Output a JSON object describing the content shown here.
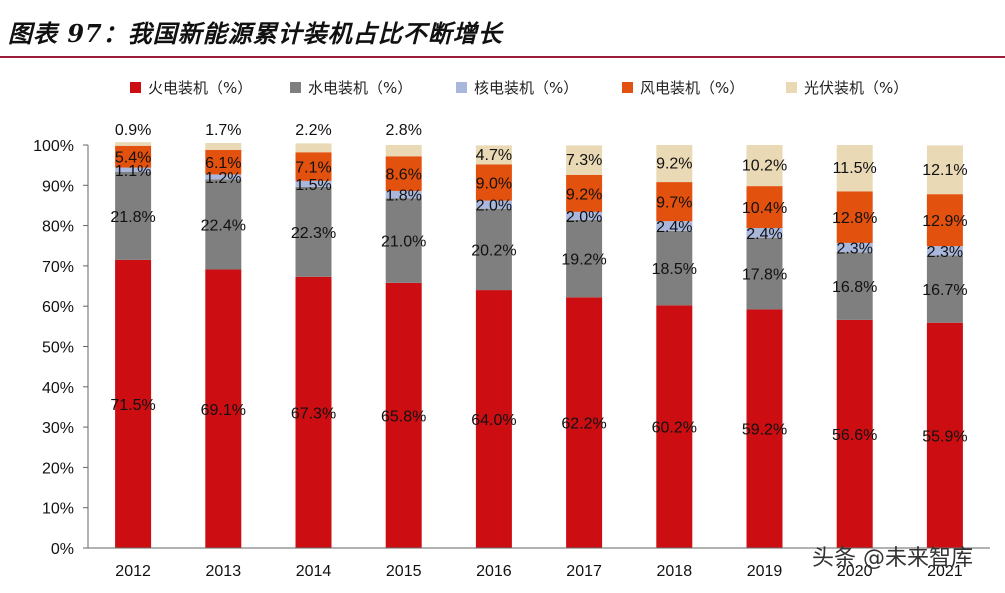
{
  "title": "图表 97：我国新能源累计装机占比不断增长",
  "watermark": "头条 @未来智库",
  "chart_data": {
    "type": "bar",
    "stacked": true,
    "title": "图表 97：我国新能源累计装机占比不断增长",
    "categories": [
      "2012",
      "2013",
      "2014",
      "2015",
      "2016",
      "2017",
      "2018",
      "2019",
      "2020",
      "2021"
    ],
    "ylim": [
      0,
      100
    ],
    "yticks": [
      "0%",
      "10%",
      "20%",
      "30%",
      "40%",
      "50%",
      "60%",
      "70%",
      "80%",
      "90%",
      "100%"
    ],
    "legend_position": "top",
    "series": [
      {
        "name": "火电装机（%）",
        "color": "#cc0d12",
        "values": [
          71.5,
          69.1,
          67.3,
          65.8,
          64.0,
          62.2,
          60.2,
          59.2,
          56.6,
          55.9
        ],
        "labels": [
          "71.5%",
          "69.1%",
          "67.3%",
          "65.8%",
          "64.0%",
          "62.2%",
          "60.2%",
          "59.2%",
          "56.6%",
          "55.9%"
        ]
      },
      {
        "name": "水电装机（%）",
        "color": "#7f7f7f",
        "values": [
          21.8,
          22.4,
          22.3,
          21.0,
          20.2,
          19.2,
          18.5,
          17.8,
          16.8,
          16.7
        ],
        "labels": [
          "21.8%",
          "22.4%",
          "22.3%",
          "21.0%",
          "20.2%",
          "19.2%",
          "18.5%",
          "17.8%",
          "16.8%",
          "16.7%"
        ]
      },
      {
        "name": "核电装机（%）",
        "color": "#a9b7dc",
        "values": [
          1.1,
          1.2,
          1.5,
          1.8,
          2.0,
          2.0,
          2.4,
          2.4,
          2.3,
          2.3
        ],
        "labels": [
          "1.1%",
          "1.2%",
          "1.5%",
          "1.8%",
          "2.0%",
          "2.0%",
          "2.4%",
          "2.4%",
          "2.3%",
          "2.3%"
        ]
      },
      {
        "name": "风电装机（%）",
        "color": "#e3510f",
        "values": [
          5.4,
          6.1,
          7.1,
          8.6,
          9.0,
          9.2,
          9.7,
          10.4,
          12.8,
          12.9
        ],
        "labels": [
          "5.4%",
          "6.1%",
          "7.1%",
          "8.6%",
          "9.0%",
          "9.2%",
          "9.7%",
          "10.4%",
          "12.8%",
          "12.9%"
        ]
      },
      {
        "name": "光伏装机（%）",
        "color": "#e9d9b5",
        "values": [
          0.9,
          1.7,
          2.2,
          2.8,
          4.7,
          7.3,
          9.2,
          10.2,
          11.5,
          12.1
        ],
        "labels": [
          "0.9%",
          "1.7%",
          "2.2%",
          "2.8%",
          "4.7%",
          "7.3%",
          "9.2%",
          "10.2%",
          "11.5%",
          "12.1%"
        ]
      }
    ]
  }
}
